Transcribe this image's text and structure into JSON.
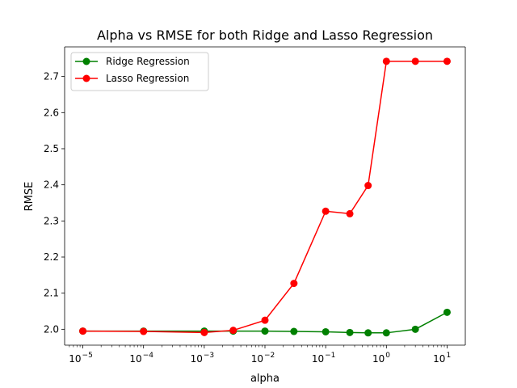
{
  "chart_data": {
    "type": "line",
    "title": "Alpha vs RMSE for both Ridge and Lasso Regression",
    "xlabel": "alpha",
    "ylabel": "RMSE",
    "x_scale": "log",
    "x": [
      1e-05,
      0.0001,
      0.001,
      0.003,
      0.01,
      0.03,
      0.1,
      0.25,
      0.5,
      1,
      3,
      10
    ],
    "x_ticks": [
      {
        "value": 1e-05,
        "base": "10",
        "exp": "−5"
      },
      {
        "value": 0.0001,
        "base": "10",
        "exp": "−4"
      },
      {
        "value": 0.001,
        "base": "10",
        "exp": "−3"
      },
      {
        "value": 0.01,
        "base": "10",
        "exp": "−2"
      },
      {
        "value": 0.1,
        "base": "10",
        "exp": "−1"
      },
      {
        "value": 1,
        "base": "10",
        "exp": "0"
      },
      {
        "value": 10,
        "base": "10",
        "exp": "1"
      }
    ],
    "y_ticks": [
      2.0,
      2.1,
      2.2,
      2.3,
      2.4,
      2.5,
      2.6,
      2.7
    ],
    "y_tick_labels": [
      "2.0",
      "2.1",
      "2.2",
      "2.3",
      "2.4",
      "2.5",
      "2.6",
      "2.7"
    ],
    "ylim": [
      1.956,
      2.782
    ],
    "series": [
      {
        "name": "Ridge Regression",
        "color": "#008000",
        "values": [
          1.995,
          1.995,
          1.995,
          1.995,
          1.995,
          1.994,
          1.993,
          1.991,
          1.99,
          1.99,
          2.0,
          2.047
        ]
      },
      {
        "name": "Lasso Regression",
        "color": "#ff0000",
        "values": [
          1.995,
          1.994,
          1.991,
          1.997,
          2.025,
          2.127,
          2.327,
          2.32,
          2.398,
          2.742,
          2.742,
          2.742
        ]
      }
    ],
    "legend_position": "top-left",
    "grid": false
  }
}
